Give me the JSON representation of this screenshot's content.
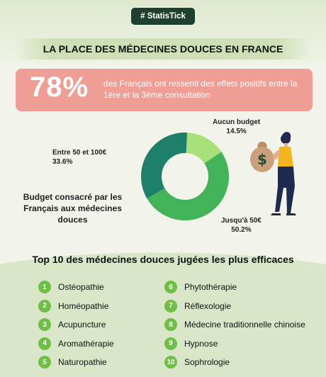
{
  "brand": "# StatisTick",
  "title": "LA PLACE DES MÉDECINES DOUCES EN FRANCE",
  "stat": {
    "value": "78%",
    "text": "des Français ont ressenti des effets positifs entre la 1ère et la 3ème consultation"
  },
  "budget_caption": "Budget consacré par les Français aux médecines douces",
  "chart_data": {
    "type": "pie",
    "donut": true,
    "title": "Budget consacré par les Français aux médecines douces",
    "slices": [
      {
        "label": "Jusqu'à 50€",
        "value": 50.2,
        "value_label": "50.2%",
        "color": "#43b35a"
      },
      {
        "label": "Entre 50 et 100€",
        "value": 33.6,
        "value_label": "33.6%",
        "color": "#1e7f68"
      },
      {
        "label": "Aucun budget",
        "value": 14.5,
        "value_label": "14.5%",
        "color": "#a7df78"
      }
    ]
  },
  "top10": {
    "title": "Top 10 des médecines douces jugées les plus efficaces",
    "items": [
      {
        "rank": "1",
        "name": "Ostéopathie"
      },
      {
        "rank": "2",
        "name": "Homéopathie"
      },
      {
        "rank": "3",
        "name": "Acupuncture"
      },
      {
        "rank": "4",
        "name": "Aromathérapie"
      },
      {
        "rank": "5",
        "name": "Naturopathie"
      },
      {
        "rank": "6",
        "name": "Phytothérapie"
      },
      {
        "rank": "7",
        "name": "Réflexologie"
      },
      {
        "rank": "8",
        "name": "Médecine traditionnelle chinoise"
      },
      {
        "rank": "9",
        "name": "Hypnose"
      },
      {
        "rank": "10",
        "name": "Sophrologie"
      }
    ]
  },
  "colors": {
    "badge": "#1f3f2f",
    "title_band": "#cfe0b6",
    "stat_box": "#ef9e95",
    "rank_circle": "#6fbe45",
    "person_shirt": "#f2b51c",
    "person_pants": "#1f2a4f",
    "money_bag": "#c9a079"
  },
  "icons": {
    "person": "person-carrying-money-bag-icon",
    "money_bag": "money-bag-dollar-icon"
  }
}
